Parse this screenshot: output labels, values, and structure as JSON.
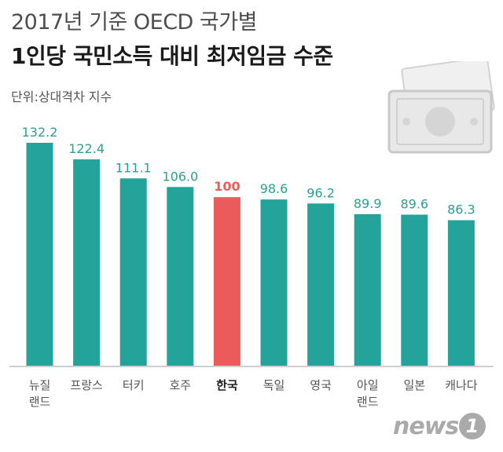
{
  "header": {
    "title_line1": "2017년 기준 OECD 국가별",
    "title_line2": "1인당 국민소득 대비 최저임금 수준",
    "unit_label": "단위:상대격차 지수"
  },
  "logo": {
    "text": "news",
    "badge": "1"
  },
  "chart_data": {
    "type": "bar",
    "categories": [
      "뉴질\n랜드",
      "프랑스",
      "터키",
      "호주",
      "한국",
      "독일",
      "영국",
      "아일\n랜드",
      "일본",
      "캐나다"
    ],
    "values": [
      132.2,
      122.4,
      111.1,
      106.0,
      100,
      98.6,
      96.2,
      89.9,
      89.6,
      86.3
    ],
    "value_labels": [
      "132.2",
      "122.4",
      "111.1",
      "106.0",
      "100",
      "98.6",
      "96.2",
      "89.9",
      "89.6",
      "86.3"
    ],
    "highlight_index": 4,
    "colors": {
      "bar": "#24a39a",
      "highlight": "#ec5b5b",
      "label": "#2b9f95",
      "highlight_label": "#ec5b5b"
    },
    "title": "",
    "xlabel": "",
    "ylabel": "",
    "ylim": [
      0,
      140
    ],
    "grid": false,
    "legend": "none"
  }
}
